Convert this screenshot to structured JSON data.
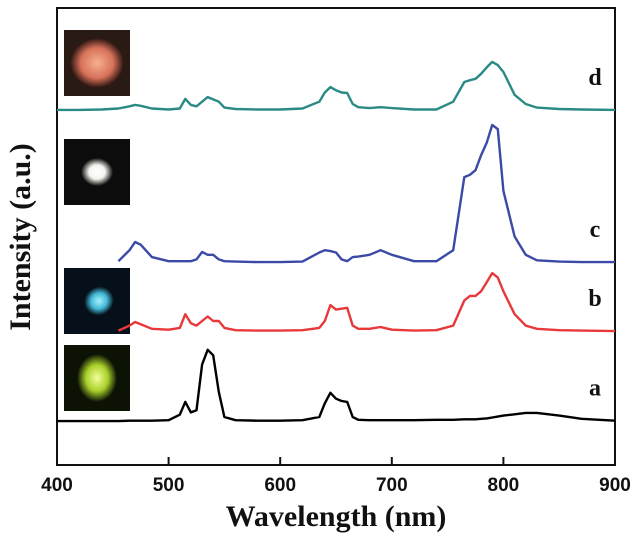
{
  "chart_data": {
    "type": "line",
    "xlabel": "Wavelength (nm)",
    "ylabel": "Intensity (a.u.)",
    "xlim": [
      400,
      900
    ],
    "xticks": [
      400,
      500,
      600,
      700,
      800,
      900
    ],
    "ylim": [
      0,
      100
    ],
    "x": [
      400,
      420,
      440,
      455,
      465,
      470,
      475,
      485,
      500,
      510,
      515,
      520,
      525,
      530,
      535,
      540,
      545,
      550,
      560,
      580,
      600,
      620,
      635,
      640,
      645,
      650,
      655,
      660,
      665,
      670,
      680,
      690,
      700,
      720,
      740,
      755,
      765,
      770,
      775,
      780,
      785,
      790,
      795,
      800,
      810,
      820,
      830,
      850,
      870,
      900
    ],
    "series": [
      {
        "name": "a",
        "color": "#000000",
        "values": [
          9.6,
          9.6,
          9.6,
          9.6,
          9.7,
          9.7,
          9.7,
          9.7,
          9.8,
          11,
          13.8,
          11.5,
          12,
          22,
          25.2,
          24,
          16,
          10.5,
          9.8,
          9.7,
          9.7,
          9.8,
          10.5,
          13.5,
          15.8,
          14.5,
          14,
          13.8,
          10.5,
          9.9,
          9.8,
          9.8,
          9.8,
          9.8,
          9.9,
          9.9,
          10,
          10,
          10,
          10.1,
          10.2,
          10.4,
          10.6,
          10.8,
          11.1,
          11.4,
          11.4,
          10.8,
          10.1,
          9.7
        ]
      },
      {
        "name": "b",
        "color": "#e8383a",
        "values": [
          null,
          null,
          null,
          29.4,
          30.5,
          31.3,
          30.8,
          29.8,
          29.6,
          30,
          33,
          31,
          30.5,
          31.5,
          32.5,
          31.5,
          31.5,
          30,
          29.5,
          29.4,
          29.4,
          29.5,
          30,
          31.5,
          35,
          34,
          34.2,
          34.4,
          30.5,
          29.8,
          29.8,
          30.2,
          29.6,
          29.4,
          29.5,
          30.5,
          36,
          37,
          37,
          38,
          40,
          42,
          41,
          38,
          33,
          30.5,
          29.8,
          29.5,
          29.4,
          29.3
        ]
      },
      {
        "name": "c",
        "color": "#3a4aa6",
        "values": [
          null,
          null,
          null,
          44.6,
          47,
          48.8,
          48.2,
          45.5,
          44.6,
          44.6,
          44.6,
          44.6,
          45,
          46.6,
          46,
          46,
          45,
          44.6,
          44.5,
          44.4,
          44.4,
          44.5,
          46.5,
          47,
          46.8,
          46.5,
          45,
          44.6,
          45.5,
          45.6,
          46,
          47,
          46,
          44.6,
          44.6,
          47,
          63,
          63.5,
          64.5,
          67.8,
          70.5,
          74.4,
          73.5,
          60,
          50,
          46,
          44.8,
          44.5,
          44.4,
          44.4
        ]
      },
      {
        "name": "d",
        "color": "#2a8a86",
        "values": [
          77.7,
          77.7,
          77.8,
          78,
          78.5,
          78.8,
          78.6,
          78,
          77.8,
          78,
          80.1,
          78.8,
          78.5,
          79.5,
          80.5,
          80,
          79.5,
          78.2,
          77.9,
          77.8,
          77.8,
          78,
          79.5,
          81.5,
          82.7,
          82,
          81.5,
          81.4,
          79,
          78.3,
          78.1,
          78.3,
          78.1,
          77.8,
          77.8,
          79.5,
          83.8,
          84.2,
          84.5,
          85.6,
          87,
          88.2,
          87.5,
          86,
          81,
          79,
          78.2,
          77.9,
          77.8,
          77.7
        ]
      }
    ]
  }
}
